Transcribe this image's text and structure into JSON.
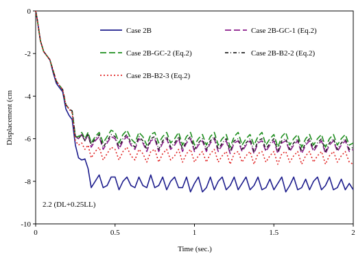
{
  "chart_data": {
    "type": "line",
    "xlabel": "Time (sec.)",
    "ylabel": "Displacement (cm",
    "xlim": [
      0,
      2
    ],
    "ylim": [
      -10,
      0
    ],
    "x_ticks": [
      "0",
      "0.5",
      "1",
      "1.5",
      "2"
    ],
    "y_ticks": [
      "0",
      "-2",
      "-4",
      "-6",
      "-8",
      "-10"
    ],
    "annotation": "2.2 (DL+0.25LL)",
    "grid": false,
    "legend_position": "top-right",
    "x": [
      0,
      0.01,
      0.02,
      0.03,
      0.05,
      0.07,
      0.09,
      0.11,
      0.13,
      0.15,
      0.17,
      0.19,
      0.21,
      0.23,
      0.25,
      0.27,
      0.29,
      0.31,
      0.33,
      0.35,
      0.375,
      0.4,
      0.425,
      0.45,
      0.475,
      0.5,
      0.525,
      0.55,
      0.575,
      0.6,
      0.625,
      0.65,
      0.675,
      0.7,
      0.725,
      0.75,
      0.775,
      0.8,
      0.825,
      0.85,
      0.875,
      0.9,
      0.925,
      0.95,
      0.975,
      1.0,
      1.025,
      1.05,
      1.075,
      1.1,
      1.125,
      1.15,
      1.175,
      1.2,
      1.225,
      1.25,
      1.275,
      1.3,
      1.325,
      1.35,
      1.375,
      1.4,
      1.425,
      1.45,
      1.475,
      1.5,
      1.525,
      1.55,
      1.575,
      1.6,
      1.625,
      1.65,
      1.675,
      1.7,
      1.725,
      1.75,
      1.775,
      1.8,
      1.825,
      1.85,
      1.875,
      1.9,
      1.925,
      1.95,
      1.975,
      2.0
    ],
    "series": [
      {
        "name": "Case 2B",
        "color": "#1c1c8c",
        "dash": "solid",
        "values": [
          0,
          -0.4,
          -0.9,
          -1.4,
          -1.9,
          -2.1,
          -2.3,
          -2.9,
          -3.4,
          -3.6,
          -3.8,
          -4.6,
          -4.9,
          -5.1,
          -6.3,
          -6.9,
          -7.0,
          -6.95,
          -7.4,
          -8.3,
          -8.0,
          -7.7,
          -8.3,
          -8.2,
          -7.8,
          -7.8,
          -8.4,
          -8.0,
          -7.8,
          -8.2,
          -8.3,
          -7.8,
          -8.2,
          -8.3,
          -7.7,
          -8.3,
          -8.2,
          -7.8,
          -8.4,
          -8.0,
          -7.8,
          -8.3,
          -8.3,
          -7.8,
          -8.5,
          -8.1,
          -7.8,
          -8.5,
          -8.3,
          -7.8,
          -8.4,
          -8.0,
          -7.8,
          -8.4,
          -8.2,
          -7.8,
          -8.4,
          -8.1,
          -7.8,
          -8.4,
          -8.2,
          -7.8,
          -8.4,
          -8.3,
          -7.9,
          -8.4,
          -8.1,
          -7.8,
          -8.5,
          -8.2,
          -7.8,
          -8.4,
          -8.3,
          -7.9,
          -8.4,
          -8.0,
          -7.8,
          -8.4,
          -8.2,
          -7.8,
          -8.4,
          -8.3,
          -7.9,
          -8.4,
          -8.1,
          -8.4
        ]
      },
      {
        "name": "Case 2B-GC-1 (Eq.2)",
        "color": "#8b1a8b",
        "dash": "long-dash",
        "values": [
          0,
          -0.4,
          -0.9,
          -1.4,
          -1.9,
          -2.1,
          -2.3,
          -2.8,
          -3.3,
          -3.5,
          -3.7,
          -4.4,
          -4.6,
          -4.7,
          -5.9,
          -6.0,
          -5.8,
          -6.1,
          -5.8,
          -6.4,
          -6.1,
          -5.9,
          -6.5,
          -6.2,
          -5.9,
          -6.0,
          -6.5,
          -6.1,
          -5.9,
          -6.3,
          -6.5,
          -6.0,
          -6.2,
          -6.6,
          -6.1,
          -6.0,
          -6.6,
          -6.2,
          -6.0,
          -6.5,
          -6.3,
          -6.0,
          -6.6,
          -6.2,
          -6.0,
          -6.6,
          -6.3,
          -6.1,
          -6.6,
          -6.2,
          -6.0,
          -6.6,
          -6.3,
          -6.1,
          -6.7,
          -6.2,
          -6.1,
          -6.6,
          -6.3,
          -6.1,
          -6.7,
          -6.2,
          -6.1,
          -6.6,
          -6.3,
          -6.1,
          -6.7,
          -6.2,
          -6.1,
          -6.6,
          -6.3,
          -6.1,
          -6.7,
          -6.3,
          -6.1,
          -6.6,
          -6.3,
          -6.1,
          -6.7,
          -6.3,
          -6.1,
          -6.6,
          -6.3,
          -6.1,
          -6.6,
          -6.5
        ]
      },
      {
        "name": "Case 2B-GC-2 (Eq.2)",
        "color": "#1a8c1a",
        "dash": "long-dash",
        "values": [
          0,
          -0.4,
          -0.9,
          -1.4,
          -1.9,
          -2.1,
          -2.3,
          -2.8,
          -3.3,
          -3.5,
          -3.7,
          -4.4,
          -4.6,
          -4.7,
          -5.9,
          -5.9,
          -5.7,
          -6.0,
          -5.7,
          -6.2,
          -5.9,
          -5.7,
          -6.2,
          -5.9,
          -5.6,
          -5.7,
          -6.2,
          -5.8,
          -5.6,
          -6.0,
          -6.2,
          -5.7,
          -5.9,
          -6.3,
          -5.8,
          -5.7,
          -6.2,
          -5.9,
          -5.7,
          -6.2,
          -6.0,
          -5.7,
          -6.3,
          -5.9,
          -5.7,
          -6.3,
          -6.0,
          -5.8,
          -6.3,
          -5.9,
          -5.7,
          -6.3,
          -6.0,
          -5.8,
          -6.4,
          -5.9,
          -5.7,
          -6.3,
          -6.0,
          -5.8,
          -6.3,
          -5.9,
          -5.7,
          -6.3,
          -6.0,
          -5.8,
          -6.4,
          -5.9,
          -5.7,
          -6.3,
          -6.0,
          -5.8,
          -6.4,
          -6.0,
          -5.8,
          -6.3,
          -6.0,
          -5.8,
          -6.4,
          -6.0,
          -5.8,
          -6.3,
          -6.0,
          -5.8,
          -6.3,
          -6.2
        ]
      },
      {
        "name": "Case 2B-B2-2 (Eq.2)",
        "color": "#222222",
        "dash": "dash-dot",
        "values": [
          0,
          -0.4,
          -0.9,
          -1.4,
          -1.9,
          -2.1,
          -2.3,
          -2.8,
          -3.3,
          -3.5,
          -3.7,
          -4.4,
          -4.6,
          -4.7,
          -5.9,
          -6.0,
          -5.8,
          -6.1,
          -5.8,
          -6.3,
          -6.0,
          -5.8,
          -6.4,
          -6.1,
          -5.8,
          -5.9,
          -6.4,
          -6.0,
          -5.8,
          -6.2,
          -6.4,
          -5.9,
          -6.1,
          -6.5,
          -6.0,
          -5.9,
          -6.5,
          -6.1,
          -5.9,
          -6.4,
          -6.2,
          -5.9,
          -6.5,
          -6.1,
          -5.9,
          -6.5,
          -6.2,
          -6.0,
          -6.5,
          -6.1,
          -5.9,
          -6.5,
          -6.2,
          -6.0,
          -6.6,
          -6.1,
          -6.0,
          -6.5,
          -6.2,
          -6.0,
          -6.6,
          -6.1,
          -6.0,
          -6.5,
          -6.2,
          -6.0,
          -6.6,
          -6.1,
          -6.0,
          -6.5,
          -6.2,
          -6.0,
          -6.6,
          -6.2,
          -6.0,
          -6.5,
          -6.2,
          -6.0,
          -6.6,
          -6.2,
          -6.0,
          -6.5,
          -6.2,
          -6.0,
          -6.5,
          -6.4
        ]
      },
      {
        "name": "Case 2B-B2-3 (Eq.2)",
        "color": "#e02020",
        "dash": "dot",
        "values": [
          0,
          -0.4,
          -0.9,
          -1.4,
          -1.9,
          -2.1,
          -2.3,
          -2.8,
          -3.3,
          -3.5,
          -3.7,
          -4.4,
          -4.6,
          -4.8,
          -6.1,
          -6.3,
          -6.2,
          -6.5,
          -6.3,
          -6.9,
          -6.6,
          -6.4,
          -7.0,
          -6.7,
          -6.4,
          -6.5,
          -7.0,
          -6.6,
          -6.4,
          -6.8,
          -7.0,
          -6.5,
          -6.7,
          -7.1,
          -6.6,
          -6.5,
          -7.1,
          -6.7,
          -6.5,
          -7.0,
          -6.8,
          -6.5,
          -7.1,
          -6.7,
          -6.5,
          -7.1,
          -6.8,
          -6.6,
          -7.1,
          -6.7,
          -6.5,
          -7.1,
          -6.8,
          -6.6,
          -7.2,
          -6.7,
          -6.6,
          -7.1,
          -6.8,
          -6.6,
          -7.2,
          -6.7,
          -6.6,
          -7.1,
          -6.8,
          -6.6,
          -7.2,
          -6.7,
          -6.6,
          -7.1,
          -6.8,
          -6.6,
          -7.2,
          -6.8,
          -6.6,
          -7.1,
          -6.8,
          -6.6,
          -7.2,
          -6.8,
          -6.6,
          -7.1,
          -6.8,
          -6.6,
          -7.1,
          -7.2
        ]
      }
    ]
  }
}
